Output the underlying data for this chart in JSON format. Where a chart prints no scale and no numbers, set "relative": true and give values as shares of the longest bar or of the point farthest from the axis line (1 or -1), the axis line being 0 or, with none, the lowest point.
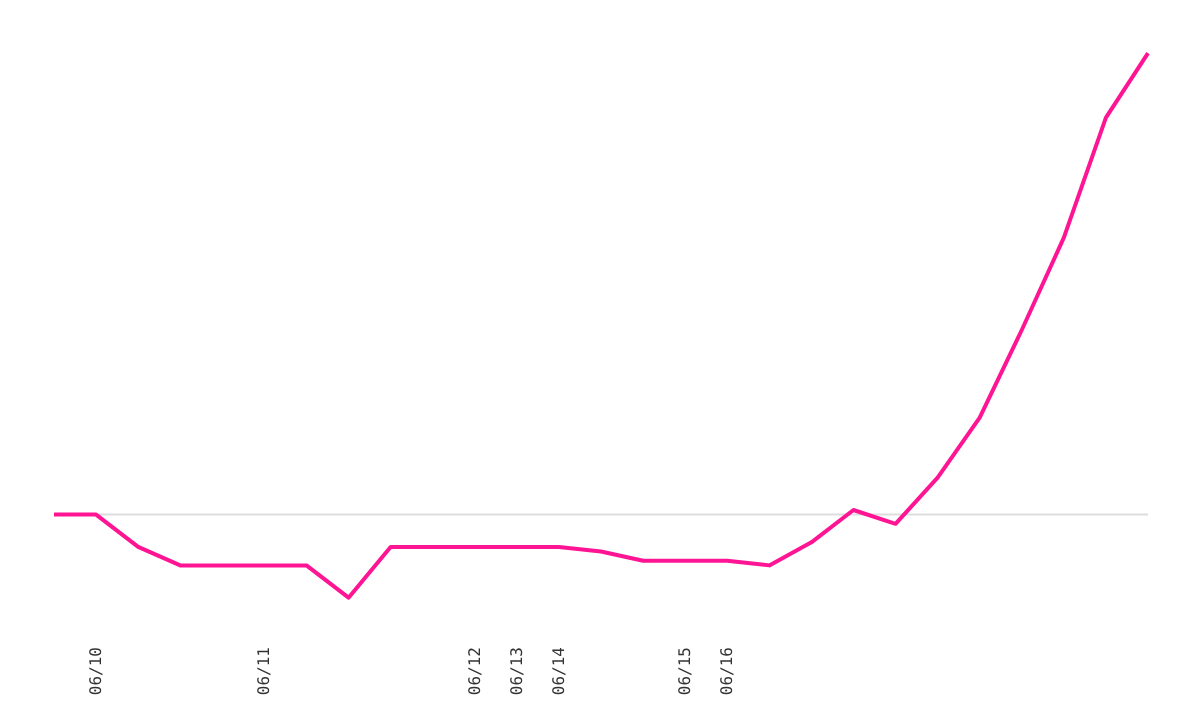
{
  "chart_data": {
    "type": "line",
    "relative": true,
    "categories": [
      null,
      "06/10",
      null,
      null,
      null,
      "06/11",
      null,
      null,
      null,
      null,
      "06/12",
      "06/13",
      "06/14",
      null,
      null,
      "06/15",
      "06/16",
      null,
      null,
      null,
      null,
      null,
      null,
      null,
      null,
      null,
      null
    ],
    "series": [
      {
        "color": "#ff1493",
        "values": [
          0,
          0,
          -0.07,
          -0.11,
          -0.11,
          -0.11,
          -0.11,
          -0.18,
          -0.07,
          -0.07,
          -0.07,
          -0.07,
          -0.07,
          -0.08,
          -0.1,
          -0.1,
          -0.1,
          -0.11,
          -0.06,
          0.01,
          -0.02,
          0.08,
          0.21,
          0.4,
          0.6,
          0.86,
          1
        ]
      }
    ],
    "ref_lines": [
      {
        "axis": "y",
        "value": 0,
        "color": "#dddddd"
      }
    ],
    "grid": false
  }
}
